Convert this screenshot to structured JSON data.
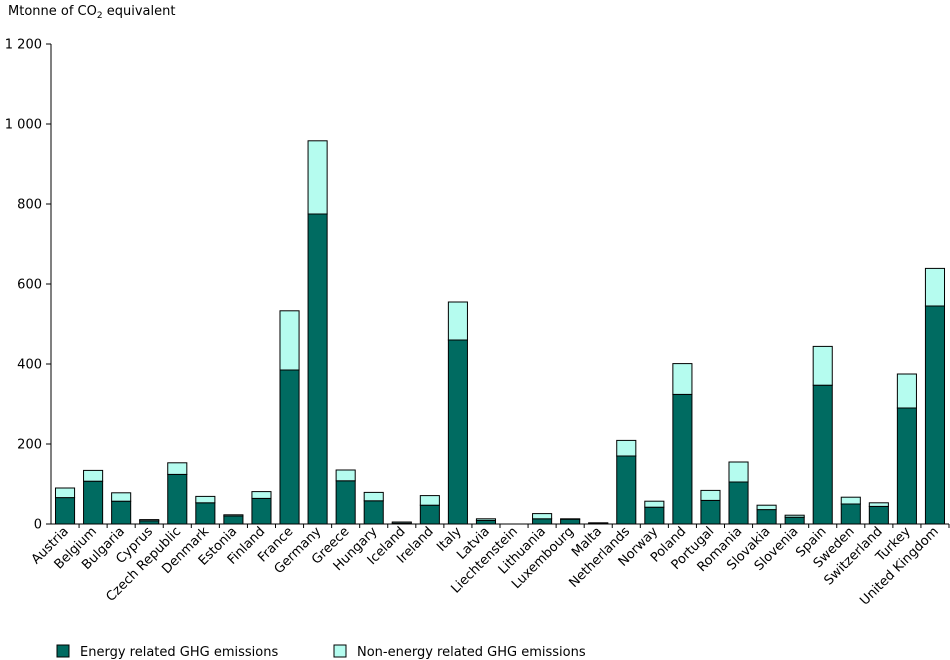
{
  "chart_data": {
    "type": "bar",
    "stacked": true,
    "ylabel_prefix": "Mtonne of CO",
    "ylabel_sub": "2",
    "ylabel_suffix": " equivalent",
    "ylim": [
      0,
      1200
    ],
    "yticks": [
      0,
      200,
      400,
      600,
      800,
      1000,
      1200
    ],
    "ytick_labels": [
      "0",
      "200",
      "400",
      "600",
      "800",
      "1 000",
      "1 200"
    ],
    "grid": false,
    "legend_position": "bottom",
    "categories": [
      "Austria",
      "Belgium",
      "Bulgaria",
      "Cyprus",
      "Czech Republic",
      "Denmark",
      "Estonia",
      "Finland",
      "France",
      "Germany",
      "Greece",
      "Hungary",
      "Iceland",
      "Ireland",
      "Italy",
      "Latvia",
      "Liechtenstein",
      "Lithuania",
      "Luxembourg",
      "Malta",
      "Netherlands",
      "Norway",
      "Poland",
      "Portugal",
      "Romania",
      "Slovakia",
      "Slovenia",
      "Spain",
      "Sweden",
      "Switzerland",
      "Turkey",
      "United Kingdom"
    ],
    "series": [
      {
        "name": "Energy related GHG emissions",
        "color": "#006b61",
        "values": [
          66,
          107,
          57,
          8,
          124,
          53,
          20,
          64,
          385,
          775,
          108,
          58,
          2,
          47,
          460,
          9,
          0,
          13,
          12,
          2,
          170,
          42,
          324,
          59,
          105,
          36,
          17,
          347,
          50,
          44,
          290,
          545
        ]
      },
      {
        "name": "Non-energy related GHG emissions",
        "color": "#b5fcef",
        "values": [
          24,
          27,
          21,
          3,
          29,
          16,
          3,
          17,
          148,
          183,
          27,
          21,
          3,
          24,
          95,
          4,
          0,
          13,
          1,
          1,
          39,
          15,
          77,
          25,
          50,
          11,
          5,
          97,
          17,
          9,
          85,
          94
        ]
      }
    ]
  }
}
